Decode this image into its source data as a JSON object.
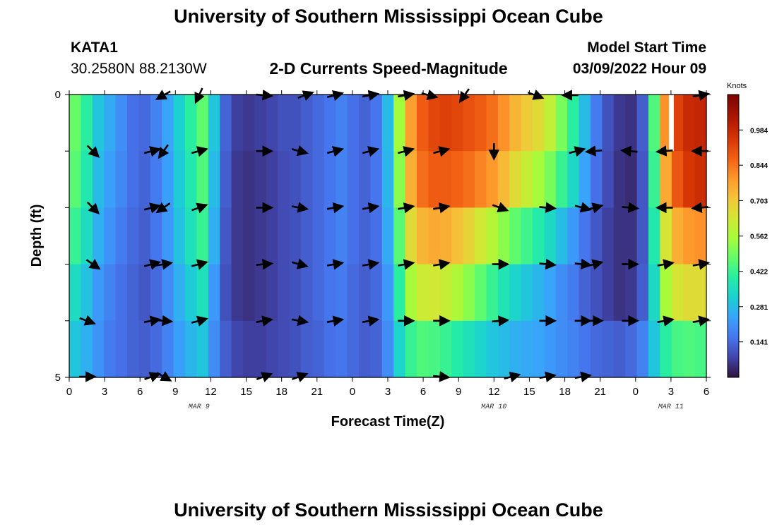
{
  "header": {
    "title": "University of Southern Mississippi Ocean Cube",
    "station": "KATA1",
    "coordinates": "30.2580N  88.2130W",
    "subtitle": "2-D Currents Speed-Magnitude",
    "model_start_label": "Model Start Time",
    "model_start_value": "03/09/2022 Hour 09"
  },
  "footer": {
    "title": "University of Southern Mississippi Ocean Cube"
  },
  "chart_data": {
    "type": "heatmap",
    "xlabel": "Forecast Time(Z)",
    "ylabel": "Depth (ft)",
    "x_tick_labels": [
      "0",
      "3",
      "6",
      "9",
      "12",
      "15",
      "18",
      "21",
      "0",
      "3",
      "6",
      "9",
      "12",
      "15",
      "18",
      "21",
      "0",
      "3",
      "6"
    ],
    "x_range_hours": [
      0,
      54
    ],
    "date_labels": [
      {
        "text": "MAR 9",
        "hour": 11
      },
      {
        "text": "MAR 10",
        "hour": 36
      },
      {
        "text": "MAR 11",
        "hour": 51
      }
    ],
    "y_tick_labels": [
      "0",
      "5"
    ],
    "y_range": [
      0,
      5
    ],
    "depth_layers": 5,
    "colorbar": {
      "unit": "Knots",
      "tick_labels": [
        "0.984",
        "0.844",
        "0.703",
        "0.562",
        "0.422",
        "0.281",
        "0.141"
      ],
      "tick_values": [
        0.984,
        0.844,
        0.703,
        0.562,
        0.422,
        0.281,
        0.141
      ],
      "range": [
        0,
        1.125
      ]
    },
    "speed_knots_by_depth": [
      [
        0.48,
        0.4,
        0.3,
        0.25,
        0.2,
        0.15,
        0.14,
        0.18,
        0.24,
        0.32,
        0.4,
        0.47,
        0.3,
        0.13,
        0.07,
        0.06,
        0.07,
        0.08,
        0.1,
        0.1,
        0.12,
        0.14,
        0.16,
        0.18,
        0.15,
        0.13,
        0.16,
        0.28,
        0.55,
        0.78,
        0.88,
        0.92,
        0.93,
        0.92,
        0.9,
        0.88,
        0.85,
        0.8,
        0.74,
        0.7,
        0.66,
        0.6,
        0.5,
        0.4,
        0.28,
        0.17,
        0.1,
        0.06,
        0.05,
        0.12,
        0.45,
        0.8,
        0.93,
        0.98,
        0.99
      ],
      [
        0.46,
        0.38,
        0.28,
        0.23,
        0.19,
        0.15,
        0.13,
        0.17,
        0.23,
        0.31,
        0.38,
        0.45,
        0.28,
        0.12,
        0.06,
        0.05,
        0.06,
        0.07,
        0.09,
        0.1,
        0.12,
        0.14,
        0.16,
        0.18,
        0.15,
        0.13,
        0.16,
        0.27,
        0.52,
        0.75,
        0.85,
        0.88,
        0.88,
        0.87,
        0.85,
        0.82,
        0.79,
        0.73,
        0.66,
        0.61,
        0.56,
        0.5,
        0.42,
        0.34,
        0.24,
        0.15,
        0.09,
        0.05,
        0.04,
        0.11,
        0.42,
        0.76,
        0.89,
        0.95,
        0.97
      ],
      [
        0.42,
        0.35,
        0.26,
        0.21,
        0.17,
        0.14,
        0.12,
        0.16,
        0.22,
        0.29,
        0.36,
        0.42,
        0.26,
        0.11,
        0.06,
        0.05,
        0.06,
        0.07,
        0.09,
        0.1,
        0.12,
        0.14,
        0.16,
        0.18,
        0.15,
        0.13,
        0.15,
        0.25,
        0.46,
        0.66,
        0.74,
        0.76,
        0.75,
        0.72,
        0.68,
        0.63,
        0.58,
        0.52,
        0.47,
        0.43,
        0.39,
        0.34,
        0.28,
        0.22,
        0.16,
        0.11,
        0.07,
        0.05,
        0.05,
        0.11,
        0.38,
        0.64,
        0.75,
        0.79,
        0.8
      ],
      [
        0.35,
        0.29,
        0.22,
        0.18,
        0.15,
        0.13,
        0.11,
        0.14,
        0.2,
        0.26,
        0.31,
        0.36,
        0.22,
        0.1,
        0.06,
        0.05,
        0.06,
        0.07,
        0.09,
        0.1,
        0.12,
        0.14,
        0.16,
        0.17,
        0.14,
        0.12,
        0.14,
        0.22,
        0.4,
        0.56,
        0.62,
        0.63,
        0.61,
        0.57,
        0.52,
        0.47,
        0.42,
        0.37,
        0.33,
        0.3,
        0.27,
        0.24,
        0.2,
        0.17,
        0.13,
        0.1,
        0.07,
        0.05,
        0.06,
        0.12,
        0.34,
        0.56,
        0.64,
        0.66,
        0.66
      ],
      [
        0.3,
        0.26,
        0.21,
        0.17,
        0.15,
        0.13,
        0.12,
        0.14,
        0.18,
        0.23,
        0.27,
        0.3,
        0.2,
        0.12,
        0.08,
        0.07,
        0.07,
        0.08,
        0.09,
        0.1,
        0.12,
        0.13,
        0.15,
        0.16,
        0.14,
        0.12,
        0.13,
        0.2,
        0.33,
        0.42,
        0.45,
        0.44,
        0.42,
        0.39,
        0.36,
        0.33,
        0.3,
        0.28,
        0.26,
        0.25,
        0.24,
        0.22,
        0.2,
        0.18,
        0.16,
        0.14,
        0.13,
        0.12,
        0.14,
        0.18,
        0.3,
        0.4,
        0.44,
        0.45,
        0.44
      ]
    ],
    "arrow_directions_deg_by_depth": [
      [
        null,
        null,
        null,
        null,
        null,
        null,
        null,
        null,
        null,
        null,
        null,
        null,
        null,
        null,
        null,
        null,
        null,
        null,
        null,
        null,
        null,
        null,
        null,
        null,
        null,
        null,
        null,
        null,
        null,
        null,
        null,
        null,
        null,
        null,
        null,
        null,
        null,
        null,
        null,
        null,
        null,
        null,
        null,
        null,
        null,
        null,
        null,
        null,
        null,
        null,
        null,
        null,
        null,
        null,
        null
      ],
      [
        null,
        null,
        null,
        null,
        null,
        null,
        null,
        null,
        null,
        null,
        null,
        null,
        null,
        null,
        null,
        null,
        null,
        null,
        null,
        null,
        null,
        null,
        null,
        null,
        null,
        null,
        null,
        null,
        null,
        null,
        null,
        null,
        null,
        null,
        null,
        null,
        null,
        null,
        null,
        null,
        null,
        null,
        null,
        null,
        null,
        null,
        null,
        null,
        null,
        null,
        null,
        null,
        null,
        null,
        null
      ],
      [
        null,
        null,
        null,
        null,
        null,
        null,
        null,
        null,
        null,
        null,
        null,
        null,
        null,
        null,
        null,
        null,
        null,
        null,
        null,
        null,
        null,
        null,
        null,
        null,
        null,
        null,
        null,
        null,
        null,
        null,
        null,
        null,
        null,
        null,
        null,
        null,
        null,
        null,
        null,
        null,
        null,
        null,
        null,
        null,
        null,
        null,
        null,
        null,
        null,
        null,
        null,
        null,
        null,
        null,
        null
      ],
      [
        null,
        null,
        null,
        null,
        null,
        null,
        null,
        null,
        null,
        null,
        null,
        null,
        null,
        null,
        null,
        null,
        null,
        null,
        null,
        null,
        null,
        null,
        null,
        null,
        null,
        null,
        null,
        null,
        null,
        null,
        null,
        null,
        null,
        null,
        null,
        null,
        null,
        null,
        null,
        null,
        null,
        null,
        null,
        null,
        null,
        null,
        null,
        null,
        null,
        null,
        null,
        null,
        null,
        null,
        null
      ],
      [
        null,
        null,
        null,
        null,
        null,
        null,
        null,
        null,
        null,
        null,
        null,
        null,
        null,
        null,
        null,
        null,
        null,
        null,
        null,
        null,
        null,
        null,
        null,
        null,
        null,
        null,
        null,
        null,
        null,
        null,
        null,
        null,
        null,
        null,
        null,
        null,
        null,
        null,
        null,
        null,
        null,
        null,
        null,
        null,
        null,
        null,
        null,
        null,
        null,
        null,
        null,
        null,
        null,
        null,
        null
      ]
    ],
    "current_vectors": [
      {
        "hour": 1.5,
        "depth_index": 0,
        "dir_deg": null
      },
      {
        "hour": 8,
        "depth_index": 0,
        "dir_deg": 240
      },
      {
        "hour": 11,
        "depth_index": 0,
        "dir_deg": 205
      },
      {
        "hour": 16.5,
        "depth_index": 0,
        "dir_deg": 95
      },
      {
        "hour": 20,
        "depth_index": 0,
        "dir_deg": 70
      },
      {
        "hour": 22.5,
        "depth_index": 0,
        "dir_deg": 75
      },
      {
        "hour": 25.5,
        "depth_index": 0,
        "dir_deg": 80
      },
      {
        "hour": 28.5,
        "depth_index": 0,
        "dir_deg": 80
      },
      {
        "hour": 30.5,
        "depth_index": 0,
        "dir_deg": 105
      },
      {
        "hour": 33.5,
        "depth_index": 0,
        "dir_deg": 215
      },
      {
        "hour": 39.5,
        "depth_index": 0,
        "dir_deg": 110
      },
      {
        "hour": 42.5,
        "depth_index": 0,
        "dir_deg": 270
      },
      {
        "hour": 53.5,
        "depth_index": 0,
        "dir_deg": 80
      },
      {
        "hour": 2,
        "depth_index": 1,
        "dir_deg": 135
      },
      {
        "hour": 7,
        "depth_index": 1,
        "dir_deg": 75
      },
      {
        "hour": 8,
        "depth_index": 1,
        "dir_deg": 215
      },
      {
        "hour": 11,
        "depth_index": 1,
        "dir_deg": 75
      },
      {
        "hour": 16.5,
        "depth_index": 1,
        "dir_deg": 90
      },
      {
        "hour": 19.5,
        "depth_index": 1,
        "dir_deg": 105
      },
      {
        "hour": 22.5,
        "depth_index": 1,
        "dir_deg": 75
      },
      {
        "hour": 25.5,
        "depth_index": 1,
        "dir_deg": 75
      },
      {
        "hour": 28.5,
        "depth_index": 1,
        "dir_deg": 75
      },
      {
        "hour": 31.5,
        "depth_index": 1,
        "dir_deg": 75
      },
      {
        "hour": 36,
        "depth_index": 1,
        "dir_deg": 180
      },
      {
        "hour": 43,
        "depth_index": 1,
        "dir_deg": 75
      },
      {
        "hour": 44.5,
        "depth_index": 1,
        "dir_deg": 265
      },
      {
        "hour": 47.5,
        "depth_index": 1,
        "dir_deg": 275
      },
      {
        "hour": 50.5,
        "depth_index": 1,
        "dir_deg": 265
      },
      {
        "hour": 53.5,
        "depth_index": 1,
        "dir_deg": 270
      },
      {
        "hour": 2,
        "depth_index": 2,
        "dir_deg": 135
      },
      {
        "hour": 7,
        "depth_index": 2,
        "dir_deg": 75
      },
      {
        "hour": 8,
        "depth_index": 2,
        "dir_deg": 235
      },
      {
        "hour": 11,
        "depth_index": 2,
        "dir_deg": 70
      },
      {
        "hour": 16.5,
        "depth_index": 2,
        "dir_deg": 90
      },
      {
        "hour": 19.5,
        "depth_index": 2,
        "dir_deg": 100
      },
      {
        "hour": 22.5,
        "depth_index": 2,
        "dir_deg": 80
      },
      {
        "hour": 25.5,
        "depth_index": 2,
        "dir_deg": 80
      },
      {
        "hour": 28.5,
        "depth_index": 2,
        "dir_deg": 80
      },
      {
        "hour": 31.5,
        "depth_index": 2,
        "dir_deg": 80
      },
      {
        "hour": 36.5,
        "depth_index": 2,
        "dir_deg": 110
      },
      {
        "hour": 40.5,
        "depth_index": 2,
        "dir_deg": 95
      },
      {
        "hour": 43.5,
        "depth_index": 2,
        "dir_deg": 105
      },
      {
        "hour": 44.5,
        "depth_index": 2,
        "dir_deg": 75
      },
      {
        "hour": 47.5,
        "depth_index": 2,
        "dir_deg": 95
      },
      {
        "hour": 50.5,
        "depth_index": 2,
        "dir_deg": 270
      },
      {
        "hour": 53.5,
        "depth_index": 2,
        "dir_deg": 265
      },
      {
        "hour": 2,
        "depth_index": 3,
        "dir_deg": 125
      },
      {
        "hour": 7,
        "depth_index": 3,
        "dir_deg": 75
      },
      {
        "hour": 8,
        "depth_index": 3,
        "dir_deg": 80
      },
      {
        "hour": 11,
        "depth_index": 3,
        "dir_deg": 75
      },
      {
        "hour": 16.5,
        "depth_index": 3,
        "dir_deg": 85
      },
      {
        "hour": 19.5,
        "depth_index": 3,
        "dir_deg": 105
      },
      {
        "hour": 22.5,
        "depth_index": 3,
        "dir_deg": 80
      },
      {
        "hour": 25.5,
        "depth_index": 3,
        "dir_deg": 80
      },
      {
        "hour": 28.5,
        "depth_index": 3,
        "dir_deg": 80
      },
      {
        "hour": 31.5,
        "depth_index": 3,
        "dir_deg": 80
      },
      {
        "hour": 36.5,
        "depth_index": 3,
        "dir_deg": 90
      },
      {
        "hour": 40.5,
        "depth_index": 3,
        "dir_deg": 95
      },
      {
        "hour": 43.5,
        "depth_index": 3,
        "dir_deg": 95
      },
      {
        "hour": 44.5,
        "depth_index": 3,
        "dir_deg": 75
      },
      {
        "hour": 47.5,
        "depth_index": 3,
        "dir_deg": 90
      },
      {
        "hour": 50.5,
        "depth_index": 3,
        "dir_deg": 80
      },
      {
        "hour": 53.5,
        "depth_index": 3,
        "dir_deg": 80
      },
      {
        "hour": 1.5,
        "depth_index": 4,
        "dir_deg": 110
      },
      {
        "hour": 7,
        "depth_index": 4,
        "dir_deg": 80
      },
      {
        "hour": 8,
        "depth_index": 4,
        "dir_deg": 95
      },
      {
        "hour": 11,
        "depth_index": 4,
        "dir_deg": 75
      },
      {
        "hour": 16.5,
        "depth_index": 4,
        "dir_deg": 80
      },
      {
        "hour": 19.5,
        "depth_index": 4,
        "dir_deg": 100
      },
      {
        "hour": 22.5,
        "depth_index": 4,
        "dir_deg": 80
      },
      {
        "hour": 25.5,
        "depth_index": 4,
        "dir_deg": 80
      },
      {
        "hour": 28.5,
        "depth_index": 4,
        "dir_deg": 90
      },
      {
        "hour": 31.5,
        "depth_index": 4,
        "dir_deg": 90
      },
      {
        "hour": 36.5,
        "depth_index": 4,
        "dir_deg": 85
      },
      {
        "hour": 40.5,
        "depth_index": 4,
        "dir_deg": 90
      },
      {
        "hour": 43.5,
        "depth_index": 4,
        "dir_deg": 90
      },
      {
        "hour": 44.5,
        "depth_index": 4,
        "dir_deg": 90
      },
      {
        "hour": 47.5,
        "depth_index": 4,
        "dir_deg": 90
      },
      {
        "hour": 50.5,
        "depth_index": 4,
        "dir_deg": 80
      },
      {
        "hour": 53.5,
        "depth_index": 4,
        "dir_deg": 80
      },
      {
        "hour": 1.5,
        "depth_index": 5,
        "dir_deg": 90
      },
      {
        "hour": 7,
        "depth_index": 5,
        "dir_deg": 70
      },
      {
        "hour": 8,
        "depth_index": 5,
        "dir_deg": 120
      },
      {
        "hour": 16.5,
        "depth_index": 5,
        "dir_deg": 70
      },
      {
        "hour": 19.5,
        "depth_index": 5,
        "dir_deg": 70
      },
      {
        "hour": 31.5,
        "depth_index": 5,
        "dir_deg": 95
      },
      {
        "hour": 37.5,
        "depth_index": 5,
        "dir_deg": 75
      },
      {
        "hour": 40.5,
        "depth_index": 5,
        "dir_deg": 80
      },
      {
        "hour": 43.5,
        "depth_index": 5,
        "dir_deg": 80
      }
    ],
    "missing_data_marker": {
      "hour": 51,
      "depth_index": 0
    }
  }
}
